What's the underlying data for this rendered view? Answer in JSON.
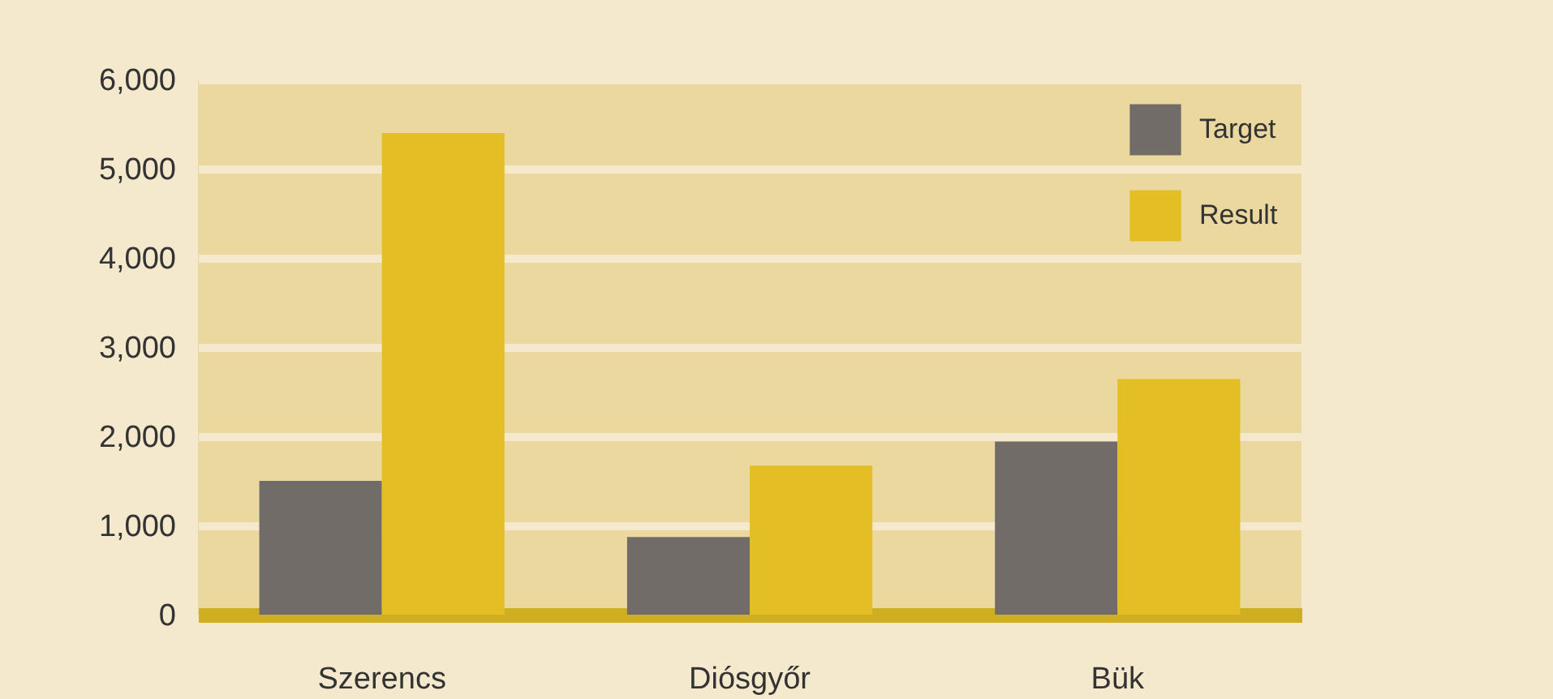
{
  "chart_data": {
    "type": "bar",
    "categories": [
      "Szerencs",
      "Diósgyőr",
      "Bük"
    ],
    "series": [
      {
        "name": "Target",
        "color": "#726c68",
        "values": [
          1500,
          870,
          1940
        ]
      },
      {
        "name": "Result",
        "color": "#e3be25",
        "values": [
          5400,
          1670,
          2640
        ]
      }
    ],
    "ylim": [
      0,
      6000
    ],
    "yticks": [
      0,
      {
        "value": 1000,
        "label": "1,000"
      },
      {
        "value": 2000,
        "label": "2,000"
      },
      {
        "value": 3000,
        "label": "3,000"
      },
      {
        "value": 4000,
        "label": "4,000"
      },
      {
        "value": 5000,
        "label": "5,000"
      },
      {
        "value": 6000,
        "label": "6,000"
      }
    ],
    "grid": "y",
    "legend": "top right"
  }
}
